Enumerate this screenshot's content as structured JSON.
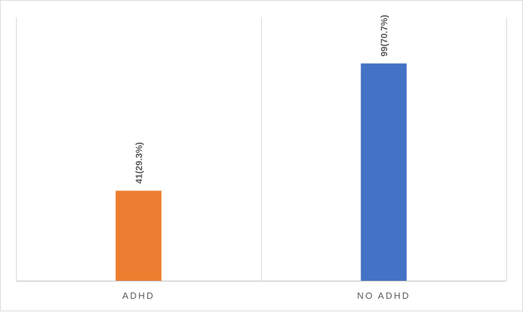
{
  "chart_data": {
    "type": "bar",
    "categories": [
      "ADHD",
      "NO ADHD"
    ],
    "values": [
      41,
      99
    ],
    "data_labels": [
      "41(29.3%)",
      "99(70.7%)"
    ],
    "colors": [
      "#ed7d31",
      "#4472c4"
    ],
    "title": "",
    "xlabel": "",
    "ylabel": "",
    "ylim": [
      0,
      120
    ],
    "grid": "vertical category separators",
    "legend": "none"
  }
}
